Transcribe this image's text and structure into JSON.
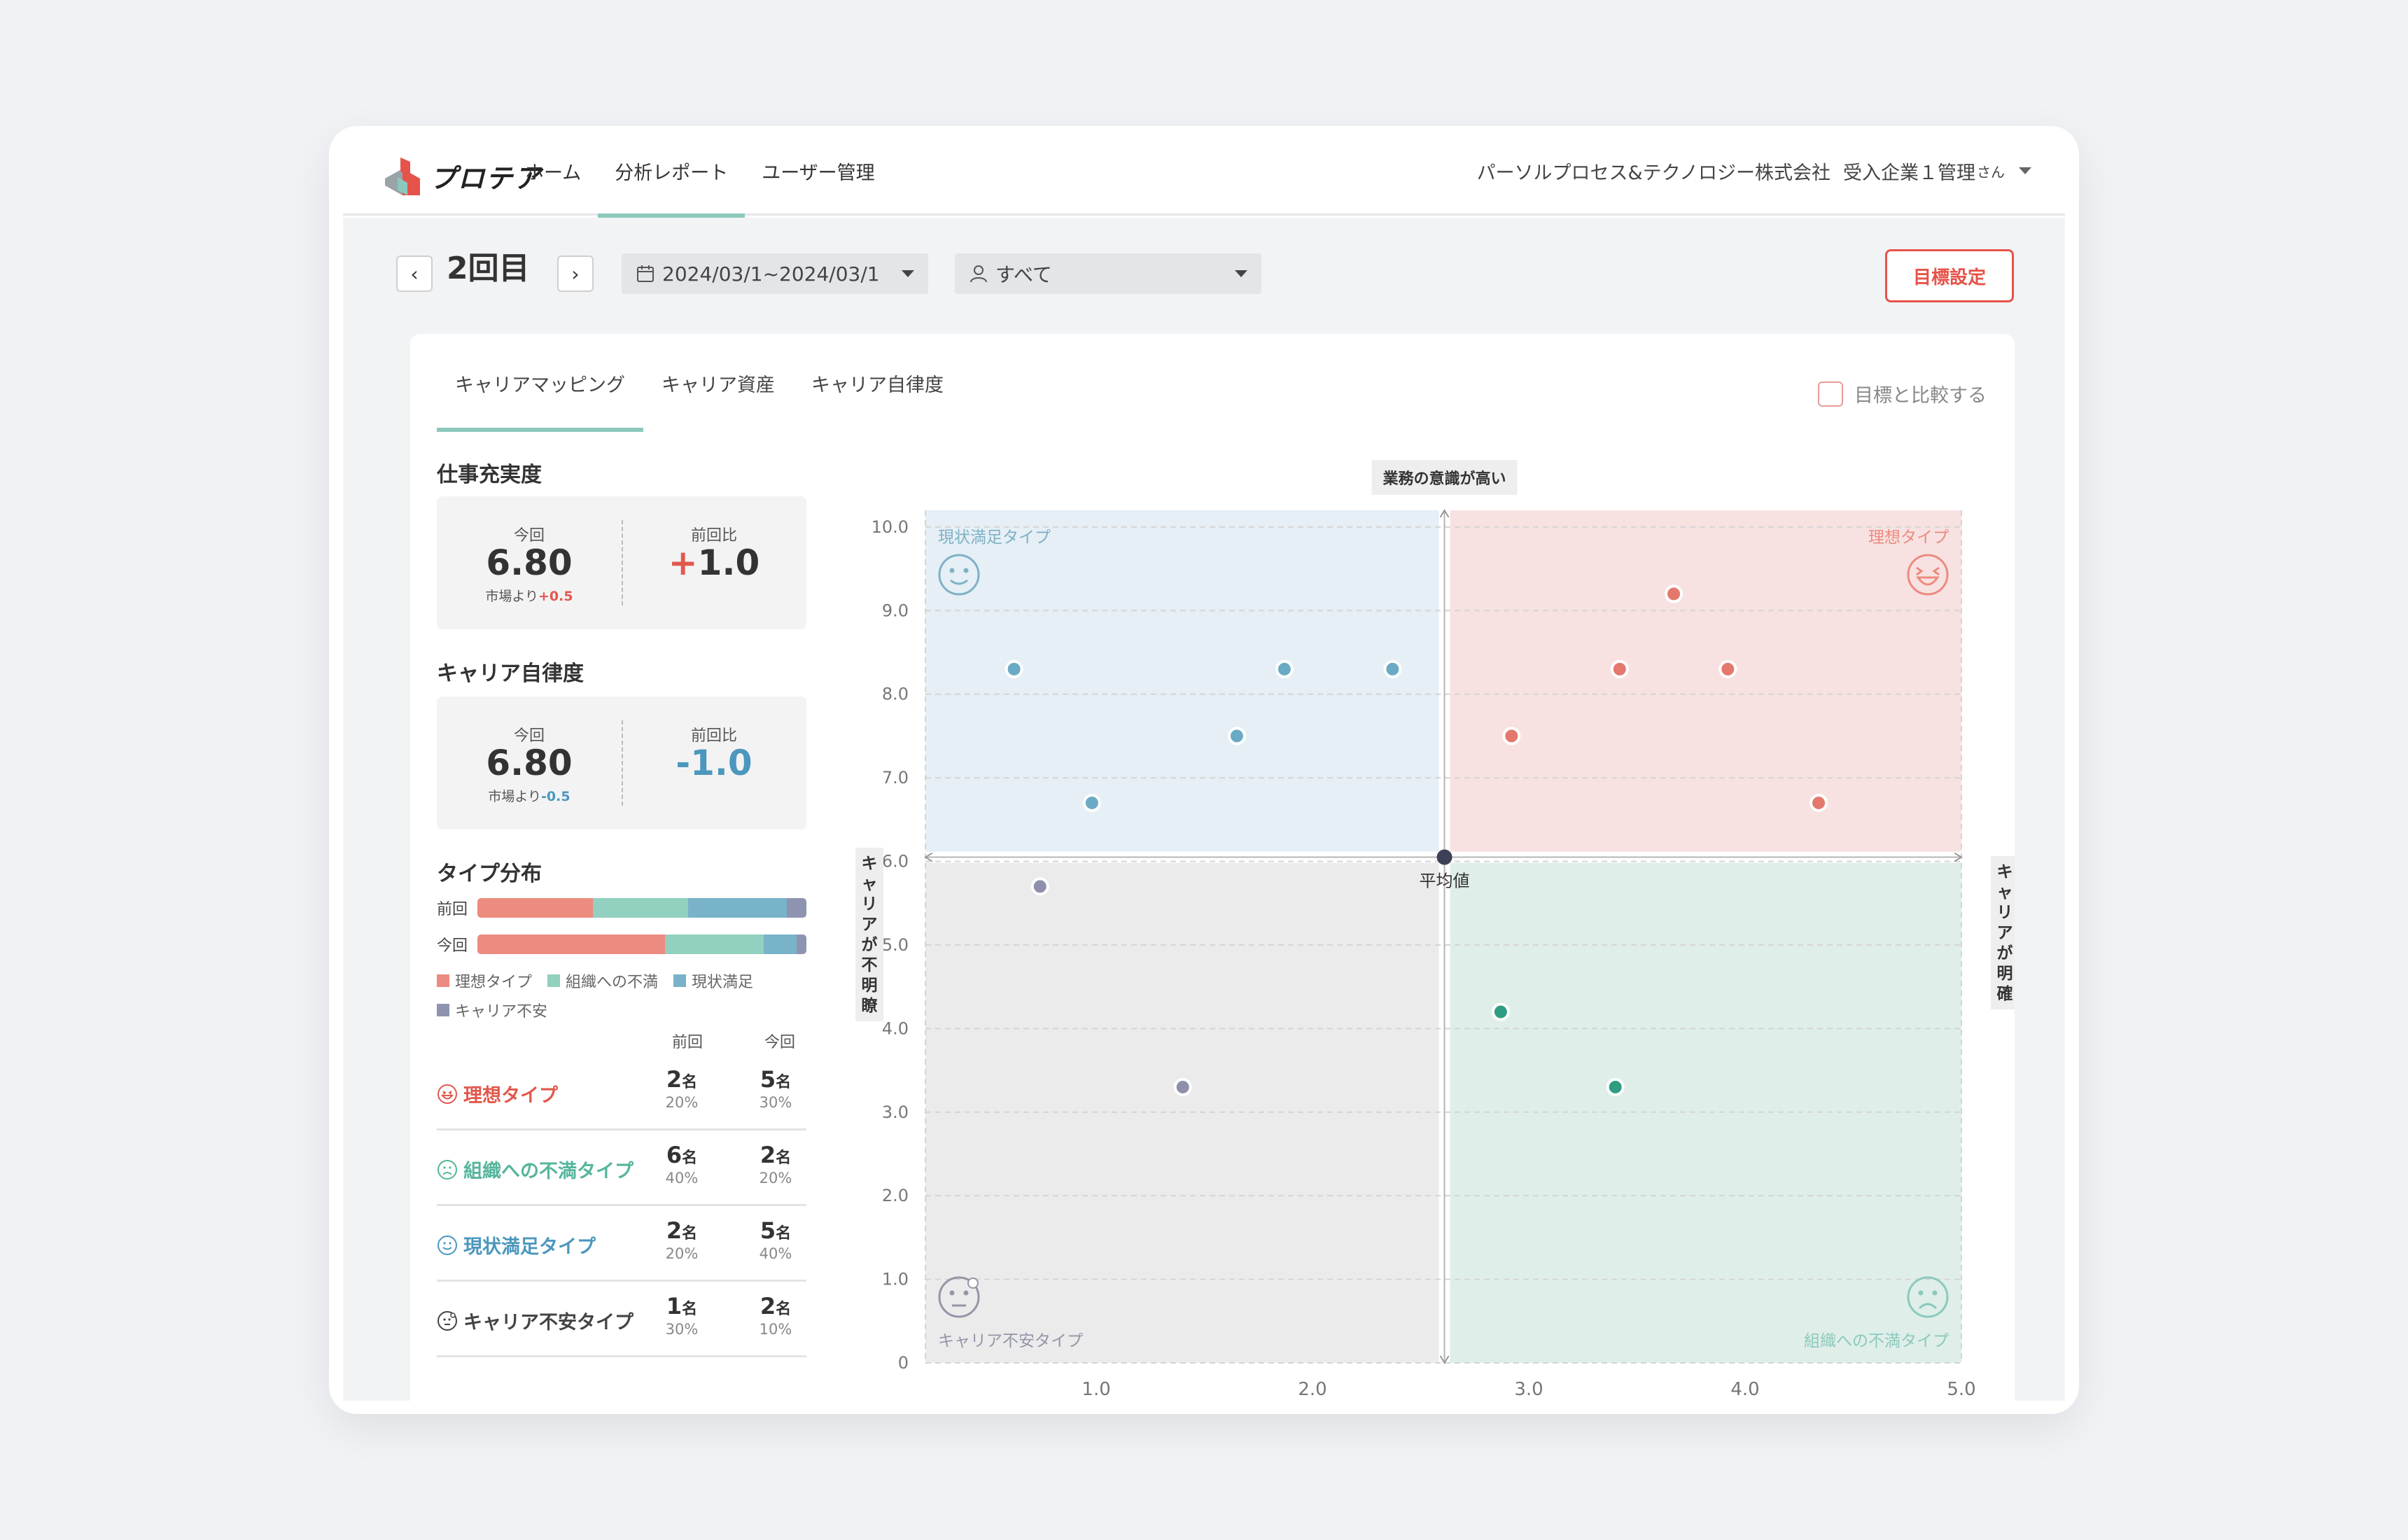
{
  "app": {
    "logo_text": "プロテア",
    "nav": [
      "ホーム",
      "分析レポート",
      "ユーザー管理"
    ],
    "company": "パーソルプロセス&テクノロジー株式会社",
    "user": "受入企業１管理",
    "user_suffix": "さん"
  },
  "toolbar": {
    "prev": "‹",
    "next": "›",
    "round": "2回目",
    "date_range": "2024/03/1~2024/03/1",
    "filter": "すべて",
    "goal_button": "目標設定"
  },
  "tabs": [
    "キャリアマッピング",
    "キャリア資産",
    "キャリア自律度"
  ],
  "compare_label": "目標と比較する",
  "kpis": [
    {
      "title": "仕事充実度",
      "current_label": "今回",
      "current": "6.80",
      "market_prefix": "市場より",
      "market_diff": "+0.5",
      "prev_label": "前回比",
      "prev_sign": "+",
      "prev_value": "1.0",
      "trend": "pos"
    },
    {
      "title": "キャリア自律度",
      "current_label": "今回",
      "current": "6.80",
      "market_prefix": "市場より",
      "market_diff": "-0.5",
      "prev_label": "前回比",
      "prev_sign": "",
      "prev_value": "-1.0",
      "trend": "neg"
    }
  ],
  "distribution": {
    "title": "タイプ分布",
    "rows": [
      {
        "label": "前回",
        "segments": [
          35,
          29,
          30,
          6
        ]
      },
      {
        "label": "今回",
        "segments": [
          57,
          30,
          10,
          3
        ]
      }
    ],
    "colors": [
      "#ec8b80",
      "#92d0bf",
      "#79b3c9",
      "#8e94b0"
    ],
    "legend": [
      "理想タイプ",
      "組織への不満",
      "現状満足",
      "キャリア不安"
    ]
  },
  "type_table": {
    "col_prev": "前回",
    "col_curr": "今回",
    "unit": "名",
    "rows": [
      {
        "name": "理想タイプ",
        "icon": "laughing-face-icon",
        "color": "#e2584d",
        "prev": "2",
        "prev_pct": "20%",
        "curr": "5",
        "curr_pct": "30%"
      },
      {
        "name": "組織への不満タイプ",
        "icon": "frowning-face-icon",
        "color": "#55b59c",
        "prev": "6",
        "prev_pct": "40%",
        "curr": "2",
        "curr_pct": "20%"
      },
      {
        "name": "現状満足タイプ",
        "icon": "smiling-face-icon",
        "color": "#4c97bd",
        "prev": "2",
        "prev_pct": "20%",
        "curr": "5",
        "curr_pct": "40%"
      },
      {
        "name": "キャリア不安タイプ",
        "icon": "anxious-face-icon",
        "color": "#444444",
        "prev": "1",
        "prev_pct": "30%",
        "curr": "2",
        "curr_pct": "10%"
      }
    ]
  },
  "chart_data": {
    "type": "scatter",
    "title": "業務の意識が高い",
    "xlabel": "",
    "ylabel": "",
    "left_axis_label": "キャリアが不明瞭",
    "right_axis_label": "キャリアが明確",
    "center_label": "平均値",
    "xlim": [
      0.21,
      5.0
    ],
    "ylim": [
      0,
      10.2
    ],
    "x_ticks": [
      "1.0",
      "2.0",
      "3.0",
      "4.0",
      "5.0"
    ],
    "x_tick_values": [
      1.0,
      2.0,
      3.0,
      4.0,
      5.0
    ],
    "y_ticks": [
      "0",
      "1.0",
      "2.0",
      "3.0",
      "4.0",
      "5.0",
      "6.0",
      "7.0",
      "8.0",
      "9.0",
      "10.0"
    ],
    "y_tick_values": [
      0,
      1,
      2,
      3,
      4,
      5,
      6,
      7,
      8,
      9,
      10
    ],
    "center": {
      "x": 2.61,
      "y": 6.05
    },
    "quadrants": [
      {
        "name": "現状満足タイプ",
        "position": "top-left",
        "color": "#e5eff5",
        "label_color": "#7fb1c6",
        "icon": "smiling-face-icon"
      },
      {
        "name": "理想タイプ",
        "position": "top-right",
        "color": "#f7e2e1",
        "label_color": "#ec8b80",
        "icon": "laughing-face-icon"
      },
      {
        "name": "キャリア不安タイプ",
        "position": "bottom-left",
        "color": "#ebebec",
        "label_color": "#9496a6",
        "icon": "anxious-face-icon"
      },
      {
        "name": "組織への不満タイプ",
        "position": "bottom-right",
        "color": "#dfeee9",
        "label_color": "#8cc9bd",
        "icon": "frowning-face-icon"
      }
    ],
    "series": [
      {
        "group": "現状満足タイプ",
        "color": "#6aaac4",
        "points": [
          [
            0.62,
            8.3
          ],
          [
            0.98,
            6.7
          ],
          [
            1.65,
            7.5
          ],
          [
            1.87,
            8.3
          ],
          [
            2.37,
            8.3
          ]
        ]
      },
      {
        "group": "理想タイプ",
        "color": "#e5786c",
        "points": [
          [
            2.92,
            7.5
          ],
          [
            3.42,
            8.3
          ],
          [
            3.67,
            9.2
          ],
          [
            3.92,
            8.3
          ],
          [
            4.34,
            6.7
          ]
        ]
      },
      {
        "group": "キャリア不安タイプ",
        "color": "#8d8fab",
        "points": [
          [
            0.74,
            5.7
          ],
          [
            1.4,
            3.3
          ]
        ]
      },
      {
        "group": "組織への不満タイプ",
        "color": "#2f9d81",
        "points": [
          [
            2.87,
            4.2
          ],
          [
            3.4,
            3.3
          ]
        ]
      }
    ]
  }
}
